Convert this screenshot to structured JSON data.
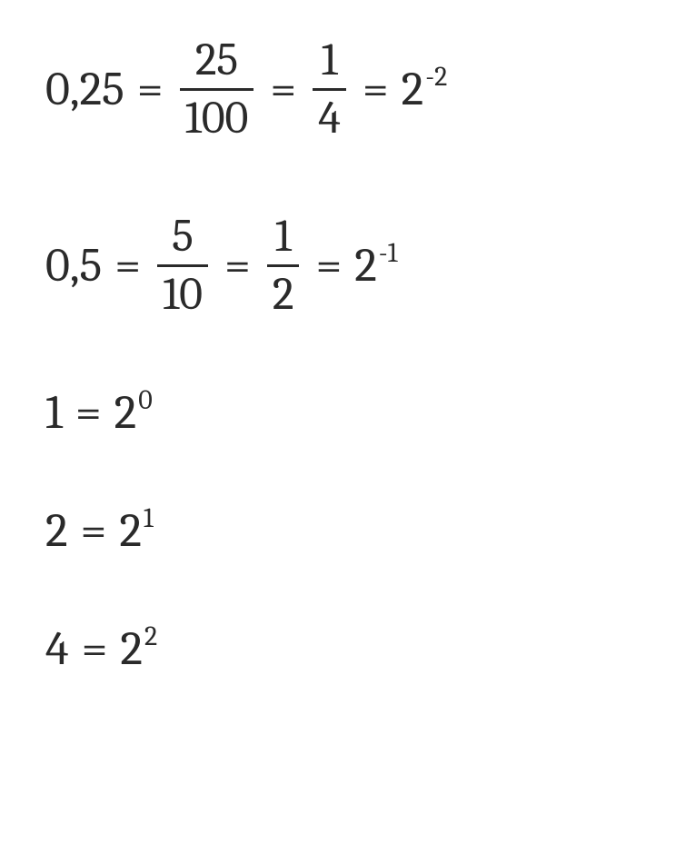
{
  "font": {
    "family": "Cambria/Georgia serif",
    "size_pt": 39,
    "exp_size_pt": 22,
    "color": "#2a2a2a"
  },
  "background_color": "#ffffff",
  "lines": [
    {
      "lhs": "0,25",
      "frac1": {
        "num": "25",
        "den": "100"
      },
      "frac2": {
        "num": "1",
        "den": "4"
      },
      "pow": {
        "base": "2",
        "exp": "-2"
      }
    },
    {
      "lhs": "0,5",
      "frac1": {
        "num": "5",
        "den": "10"
      },
      "frac2": {
        "num": "1",
        "den": "2"
      },
      "pow": {
        "base": "2",
        "exp": "-1"
      }
    },
    {
      "lhs": "1",
      "pow": {
        "base": "2",
        "exp": "0"
      }
    },
    {
      "lhs": "2",
      "pow": {
        "base": "2",
        "exp": "1"
      }
    },
    {
      "lhs": "4",
      "pow": {
        "base": "2",
        "exp": "2"
      }
    }
  ],
  "symbols": {
    "equals": "="
  }
}
